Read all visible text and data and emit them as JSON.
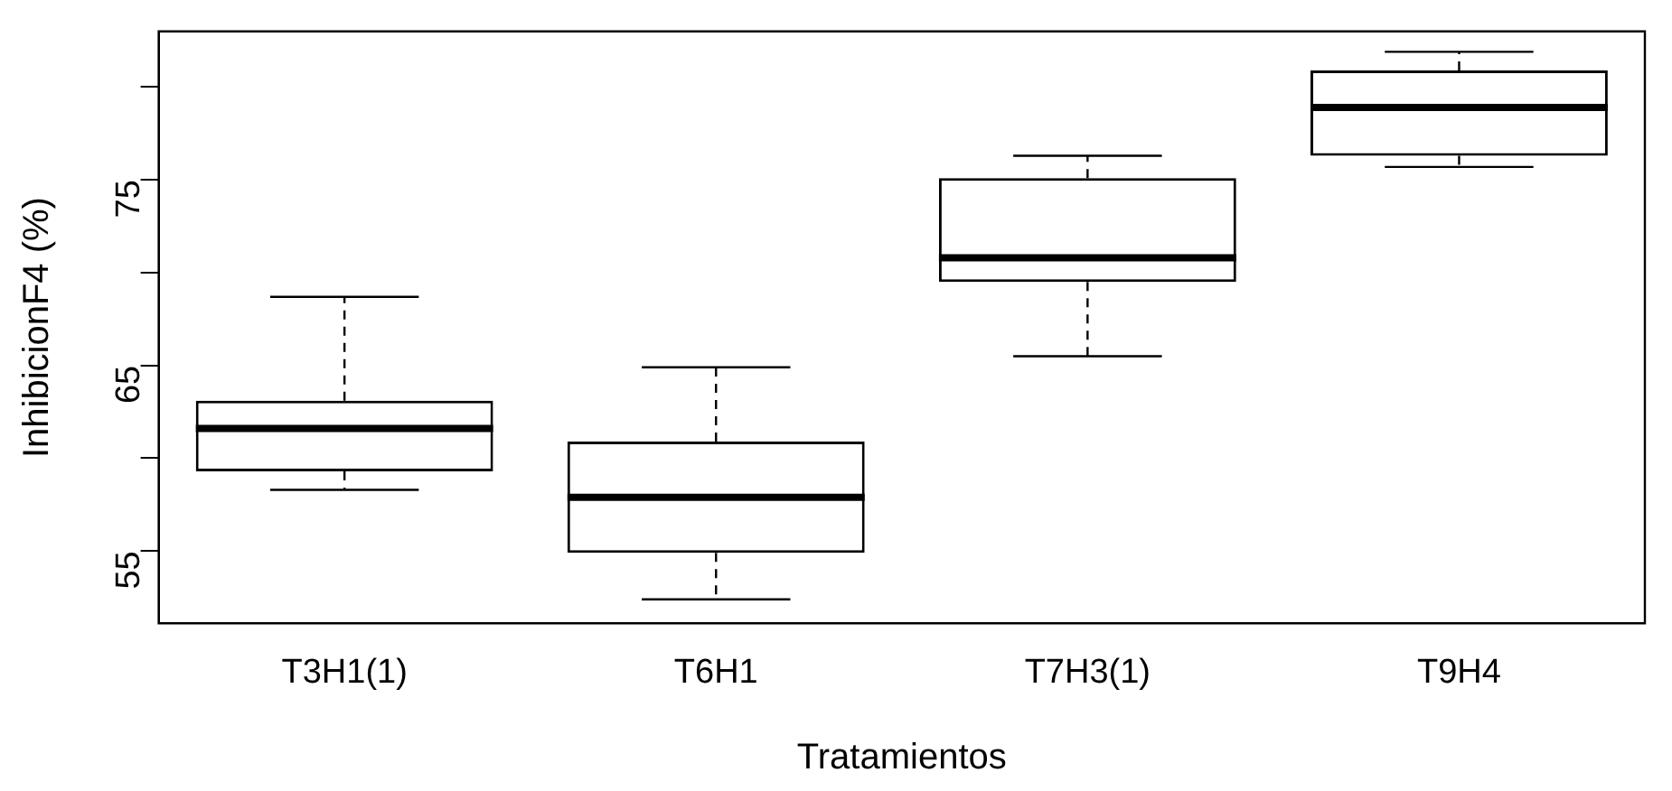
{
  "chart_data": {
    "type": "box",
    "xlabel": "Tratamientos",
    "ylabel": "InhibicionF4 (%)",
    "categories": [
      "T3H1(1)",
      "T6H1",
      "T7H3(1)",
      "T9H4"
    ],
    "boxes": [
      {
        "low": 58.3,
        "q1": 59.3,
        "median": 61.6,
        "q3": 63.1,
        "high": 68.7
      },
      {
        "low": 52.4,
        "q1": 54.9,
        "median": 57.9,
        "q3": 60.9,
        "high": 64.9
      },
      {
        "low": 65.5,
        "q1": 69.5,
        "median": 70.8,
        "q3": 75.1,
        "high": 76.3
      },
      {
        "low": 75.7,
        "q1": 76.3,
        "median": 78.9,
        "q3": 80.9,
        "high": 81.9
      }
    ],
    "ylim": [
      51.1,
      83.0
    ],
    "yticks": [
      55,
      {
        "value": 60,
        "label": null
      },
      65,
      {
        "value": 70,
        "label": null
      },
      75,
      {
        "value": 80,
        "label": null
      }
    ],
    "grid": false
  }
}
